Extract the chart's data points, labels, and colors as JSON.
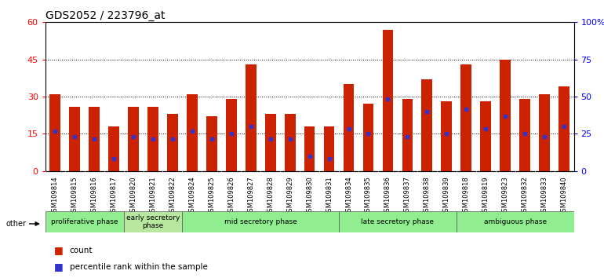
{
  "title": "GDS2052 / 223796_at",
  "samples": [
    "GSM109814",
    "GSM109815",
    "GSM109816",
    "GSM109817",
    "GSM109820",
    "GSM109821",
    "GSM109822",
    "GSM109824",
    "GSM109825",
    "GSM109826",
    "GSM109827",
    "GSM109828",
    "GSM109829",
    "GSM109830",
    "GSM109831",
    "GSM109834",
    "GSM109835",
    "GSM109836",
    "GSM109837",
    "GSM109838",
    "GSM109839",
    "GSM109818",
    "GSM109819",
    "GSM109823",
    "GSM109832",
    "GSM109833",
    "GSM109840"
  ],
  "count_values": [
    31,
    26,
    26,
    18,
    26,
    26,
    23,
    31,
    22,
    29,
    43,
    23,
    23,
    18,
    18,
    35,
    27,
    57,
    29,
    37,
    28,
    43,
    28,
    45,
    29,
    31,
    34
  ],
  "percentile_values": [
    16,
    14,
    13,
    5,
    14,
    13,
    13,
    16,
    13,
    15,
    18,
    13,
    13,
    6,
    5,
    17,
    15,
    29,
    14,
    24,
    15,
    25,
    17,
    22,
    15,
    14,
    18
  ],
  "bar_color": "#CC2200",
  "percentile_color": "#3333CC",
  "ylim_left": [
    0,
    60
  ],
  "ylim_right": [
    0,
    100
  ],
  "yticks_left": [
    0,
    15,
    30,
    45,
    60
  ],
  "yticks_right": [
    0,
    25,
    50,
    75,
    100
  ],
  "ytick_labels_right": [
    "0",
    "25",
    "50",
    "75",
    "100%"
  ],
  "ytick_labels_left": [
    "0",
    "15",
    "30",
    "45",
    "60"
  ],
  "phases": [
    {
      "label": "proliferative phase",
      "start": 0,
      "end": 4,
      "color": "#90EE90"
    },
    {
      "label": "early secretory\nphase",
      "start": 4,
      "end": 7,
      "color": "#B8E8A0"
    },
    {
      "label": "mid secretory phase",
      "start": 7,
      "end": 15,
      "color": "#90EE90"
    },
    {
      "label": "late secretory phase",
      "start": 15,
      "end": 21,
      "color": "#90EE90"
    },
    {
      "label": "ambiguous phase",
      "start": 21,
      "end": 27,
      "color": "#90EE90"
    }
  ],
  "other_label": "other",
  "legend_count_label": "count",
  "legend_percentile_label": "percentile rank within the sample",
  "bar_width": 0.55,
  "tick_label_fontsize": 6,
  "title_fontsize": 10
}
